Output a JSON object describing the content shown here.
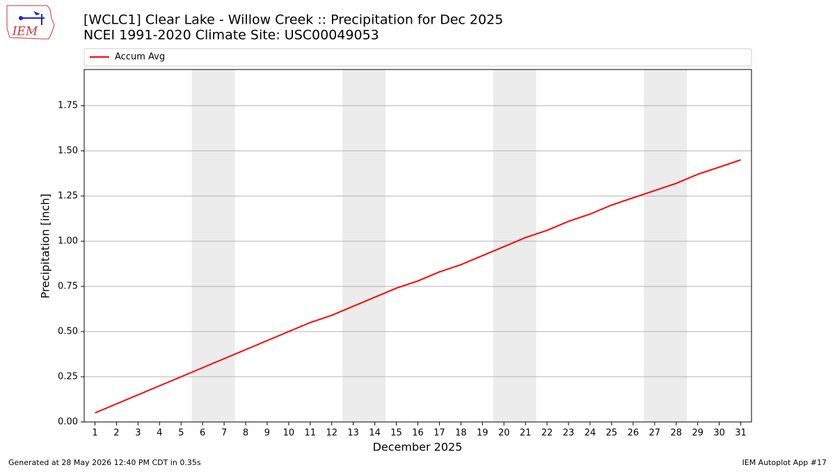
{
  "chart_data": {
    "type": "line",
    "title": "[WCLC1] Clear Lake - Willow Creek :: Precipitation for Dec 2025",
    "subtitle": "NCEI 1991-2020 Climate Site: USC00049053",
    "x_label": "December 2025",
    "y_label": "Precipitation [inch]",
    "logo_text": "IEM",
    "footer_left": "Generated at 28 May 2026 12:40 PM CDT in 0.35s",
    "footer_right": "IEM Autoplot App #17",
    "legend": "upper left",
    "grid": true,
    "shaded_spans": [
      [
        5.5,
        7.5
      ],
      [
        12.5,
        14.5
      ],
      [
        19.5,
        21.5
      ],
      [
        26.5,
        28.5
      ]
    ],
    "shade_color": "#ececec",
    "x": [
      1,
      2,
      3,
      4,
      5,
      6,
      7,
      8,
      9,
      10,
      11,
      12,
      13,
      14,
      15,
      16,
      17,
      18,
      19,
      20,
      21,
      22,
      23,
      24,
      25,
      26,
      27,
      28,
      29,
      30,
      31
    ],
    "series": [
      {
        "name": "Accum Avg",
        "color": "#ff0000",
        "values": [
          0.05,
          0.1,
          0.15,
          0.2,
          0.25,
          0.3,
          0.35,
          0.4,
          0.45,
          0.5,
          0.55,
          0.59,
          0.64,
          0.69,
          0.74,
          0.78,
          0.83,
          0.87,
          0.92,
          0.97,
          1.02,
          1.06,
          1.11,
          1.15,
          1.2,
          1.24,
          1.28,
          1.32,
          1.37,
          1.41,
          1.45
        ]
      }
    ],
    "xlim": [
      0.5,
      31.5
    ],
    "xticks": [
      1,
      2,
      3,
      4,
      5,
      6,
      7,
      8,
      9,
      10,
      11,
      12,
      13,
      14,
      15,
      16,
      17,
      18,
      19,
      20,
      21,
      22,
      23,
      24,
      25,
      26,
      27,
      28,
      29,
      30,
      31
    ],
    "ylim": [
      0,
      1.95
    ],
    "yticks": [
      {
        "value": 0,
        "label": "0.00"
      },
      {
        "value": 0.25,
        "label": "0.25"
      },
      {
        "value": 0.5,
        "label": "0.50"
      },
      {
        "value": 0.75,
        "label": "0.75"
      },
      {
        "value": 1,
        "label": "1.00"
      },
      {
        "value": 1.25,
        "label": "1.25"
      },
      {
        "value": 1.5,
        "label": "1.50"
      },
      {
        "value": 1.75,
        "label": "1.75"
      }
    ]
  }
}
